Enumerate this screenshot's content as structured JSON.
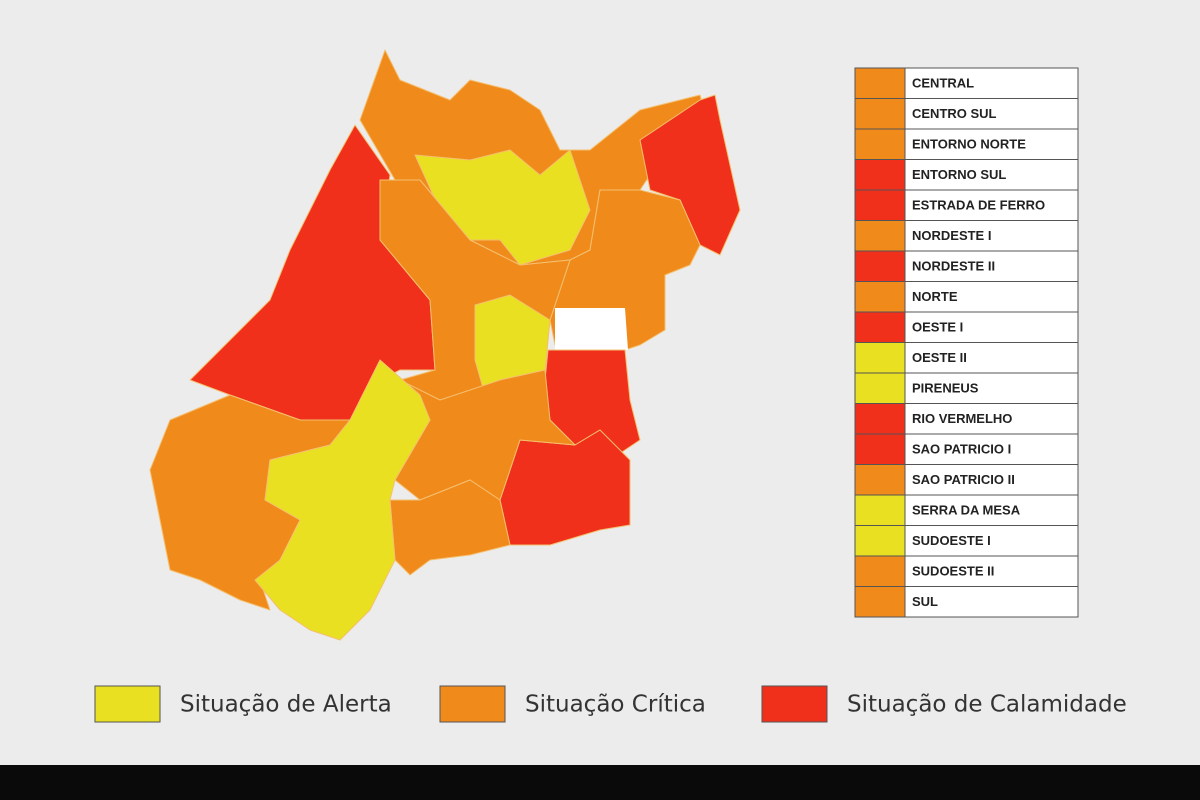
{
  "regions": [
    {
      "name": "CENTRAL",
      "color": "#f08a1a"
    },
    {
      "name": "CENTRO SUL",
      "color": "#f08a1a"
    },
    {
      "name": "ENTORNO NORTE",
      "color": "#f08a1a"
    },
    {
      "name": "ENTORNO SUL",
      "color": "#f0301a"
    },
    {
      "name": "ESTRADA DE FERRO",
      "color": "#f0301a"
    },
    {
      "name": "NORDESTE I",
      "color": "#f08a1a"
    },
    {
      "name": "NORDESTE II",
      "color": "#f0301a"
    },
    {
      "name": "NORTE",
      "color": "#f08a1a"
    },
    {
      "name": "OESTE I",
      "color": "#f0301a"
    },
    {
      "name": "OESTE II",
      "color": "#e8e020"
    },
    {
      "name": "PIRENEUS",
      "color": "#e8e020"
    },
    {
      "name": "RIO VERMELHO",
      "color": "#f0301a"
    },
    {
      "name": "SAO PATRICIO I",
      "color": "#f0301a"
    },
    {
      "name": "SAO PATRICIO II",
      "color": "#f08a1a"
    },
    {
      "name": "SERRA DA MESA",
      "color": "#e8e020"
    },
    {
      "name": "SUDOESTE I",
      "color": "#e8e020"
    },
    {
      "name": "SUDOESTE II",
      "color": "#f08a1a"
    },
    {
      "name": "SUL",
      "color": "#f08a1a"
    }
  ],
  "legend": [
    {
      "label": "Situação de Alerta",
      "color": "#e8e020"
    },
    {
      "label": "Situação Crítica",
      "color": "#f08a1a"
    },
    {
      "label": "Situação de Calamidade",
      "color": "#f0301a"
    }
  ]
}
